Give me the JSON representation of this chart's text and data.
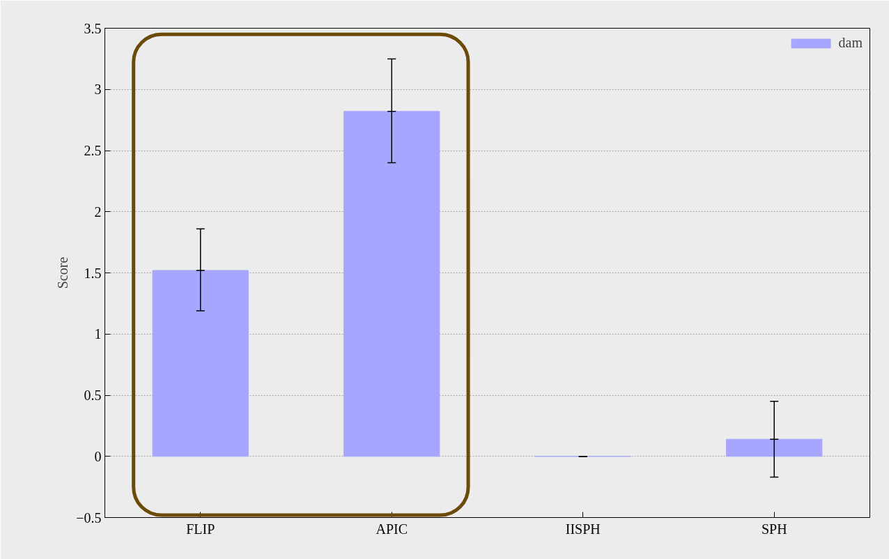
{
  "chart_data": {
    "type": "bar",
    "ylabel": "Score",
    "categories": [
      "FLIP",
      "APIC",
      "IISPH",
      "SPH"
    ],
    "series": [
      {
        "name": "dam",
        "color": "#a6a6ff",
        "values": [
          1.52,
          2.82,
          0,
          0.14
        ],
        "errors": [
          [
            1.19,
            1.86
          ],
          [
            2.4,
            3.25
          ],
          [
            0,
            0
          ],
          [
            -0.17,
            0.45
          ]
        ]
      }
    ],
    "ylim": [
      -0.5,
      3.5
    ],
    "yticks": [
      -0.5,
      0,
      0.5,
      1,
      1.5,
      2,
      2.5,
      3,
      3.5
    ],
    "grid": "y",
    "legend": "top right"
  }
}
